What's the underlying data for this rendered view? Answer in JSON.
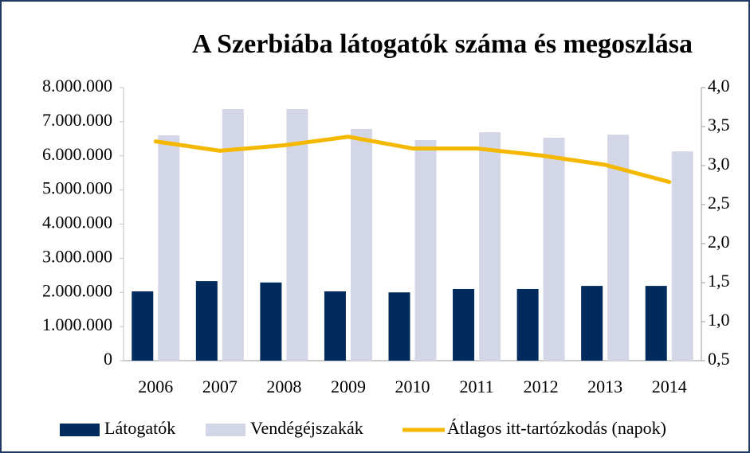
{
  "chart_data": {
    "type": "bar",
    "title": "A Szerbiába látogatók száma és megoszlása",
    "categories": [
      "2006",
      "2007",
      "2008",
      "2009",
      "2010",
      "2011",
      "2012",
      "2013",
      "2014"
    ],
    "series": [
      {
        "name": "Látogatók",
        "color": "#002b5c",
        "values": [
          2030000,
          2330000,
          2290000,
          2030000,
          2000000,
          2100000,
          2100000,
          2190000,
          2190000
        ]
      },
      {
        "name": "Vendégéjszakák",
        "color": "#d3d6e6",
        "values": [
          6600000,
          7370000,
          7370000,
          6790000,
          6460000,
          6690000,
          6530000,
          6620000,
          6130000
        ]
      },
      {
        "name": "Átlagos itt-tartózkodás (napok)",
        "color": "#f5b800",
        "axis": "y2",
        "type": "line",
        "values": [
          3.31,
          3.19,
          3.26,
          3.37,
          3.22,
          3.22,
          3.13,
          3.01,
          2.79
        ]
      }
    ],
    "ylim": [
      0,
      8000000
    ],
    "yticks": [
      0,
      {
        "value": 1000000,
        "label": "1.000.000"
      },
      {
        "value": 2000000,
        "label": "2.000.000"
      },
      {
        "value": 3000000,
        "label": "3.000.000"
      },
      {
        "value": 4000000,
        "label": "4.000.000"
      },
      {
        "value": 5000000,
        "label": "5.000.000"
      },
      {
        "value": 6000000,
        "label": "6.000.000"
      },
      {
        "value": 7000000,
        "label": "7.000.000"
      },
      {
        "value": 8000000,
        "label": "8.000.000"
      }
    ],
    "y2lim": [
      0.5,
      4.0
    ],
    "y2ticks": [
      {
        "value": 0.5,
        "label": "0,5"
      },
      {
        "value": 1.0,
        "label": "1,0"
      },
      {
        "value": 1.5,
        "label": "1,5"
      },
      {
        "value": 2.0,
        "label": "2,0"
      },
      {
        "value": 2.5,
        "label": "2,5"
      },
      {
        "value": 3.0,
        "label": "3,0"
      },
      {
        "value": 3.5,
        "label": "3,5"
      },
      {
        "value": 4.0,
        "label": "4,0"
      }
    ],
    "legend": "bottom"
  }
}
